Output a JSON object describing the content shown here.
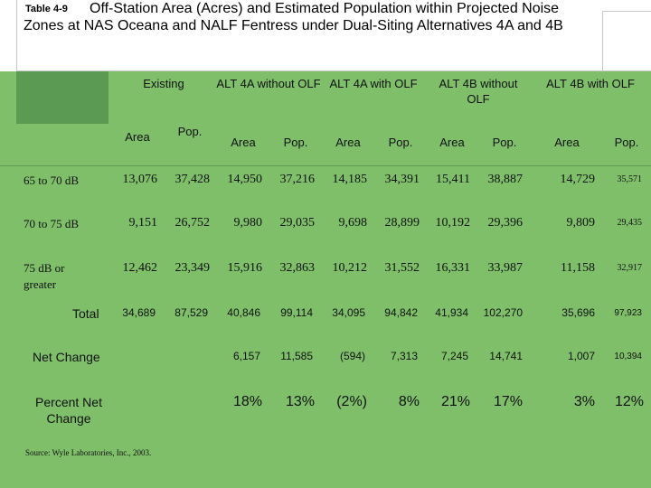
{
  "title": {
    "table_label": "Table 4-9",
    "text": "Off-Station Area (Acres) and Estimated Population within Projected Noise Zones at NAS Oceana and NALF Fentress under Dual-Siting Alternatives 4A and 4B"
  },
  "columns": {
    "groups": [
      {
        "label": "Existing"
      },
      {
        "label": "ALT 4A without OLF"
      },
      {
        "label": "ALT 4A with OLF"
      },
      {
        "label": "ALT 4B without OLF"
      },
      {
        "label": "ALT 4B with OLF"
      }
    ],
    "sub": {
      "area": "Area",
      "pop": "Pop."
    }
  },
  "rows": [
    {
      "label": "65 to 70 dB",
      "values": [
        "13,076",
        "37,428",
        "14,950",
        "37,216",
        "14,185",
        "34,391",
        "15,411",
        "38,887",
        "14,729",
        "35,571"
      ]
    },
    {
      "label": "70 to 75 dB",
      "values": [
        "9,151",
        "26,752",
        "9,980",
        "29,035",
        "9,698",
        "28,899",
        "10,192",
        "29,396",
        "9,809",
        "29,435"
      ]
    },
    {
      "label": "75 dB or greater",
      "values": [
        "12,462",
        "23,349",
        "15,916",
        "32,863",
        "10,212",
        "31,552",
        "16,331",
        "33,987",
        "11,158",
        "32,917"
      ]
    }
  ],
  "total": {
    "label": "Total",
    "values": [
      "34,689",
      "87,529",
      "40,846",
      "99,114",
      "34,095",
      "94,842",
      "41,934",
      "102,270",
      "35,696",
      "97,923"
    ]
  },
  "net_change": {
    "label": "Net Change",
    "values": [
      "6,157",
      "11,585",
      "(594)",
      "7,313",
      "7,245",
      "14,741",
      "1,007",
      "10,394"
    ]
  },
  "percent_change": {
    "label": "Percent Net Change",
    "values": [
      "18%",
      "13%",
      "(2%)",
      "8%",
      "21%",
      "17%",
      "3%",
      "12%"
    ]
  },
  "source": "Source: Wyle Laboratories, Inc., 2003.",
  "colors": {
    "table_bg": "#7fbf6a",
    "header_dark": "#5a9a52"
  }
}
